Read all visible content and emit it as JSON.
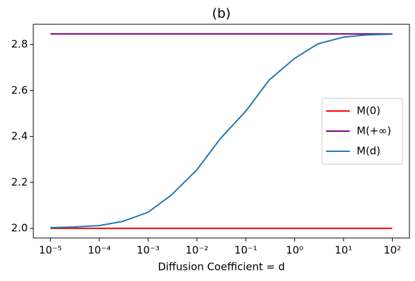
{
  "chart_data": {
    "type": "line",
    "title": "(b)",
    "x_label": "Diffusion Coefficient = d",
    "x": [
      1e-05,
      3e-05,
      0.0001,
      0.0003,
      0.001,
      0.003,
      0.01,
      0.03,
      0.1,
      0.3,
      1,
      3,
      10,
      30,
      100
    ],
    "series": [
      {
        "name": "M(0)",
        "color": "#ff0000",
        "values": [
          2.0,
          2.0,
          2.0,
          2.0,
          2.0,
          2.0,
          2.0,
          2.0,
          2.0,
          2.0,
          2.0,
          2.0,
          2.0,
          2.0,
          2.0
        ]
      },
      {
        "name": "M(+∞)",
        "color": "#800080",
        "values": [
          2.846,
          2.846,
          2.846,
          2.846,
          2.846,
          2.846,
          2.846,
          2.846,
          2.846,
          2.846,
          2.846,
          2.846,
          2.846,
          2.846,
          2.846
        ]
      },
      {
        "name": "M(d)",
        "color": "#1f77b4",
        "values": [
          2.003,
          2.006,
          2.012,
          2.03,
          2.07,
          2.145,
          2.255,
          2.39,
          2.51,
          2.645,
          2.74,
          2.803,
          2.832,
          2.842,
          2.845
        ]
      }
    ],
    "xscale": "log",
    "xlim": [
      4.47e-06,
      223.9
    ],
    "xticks": [
      {
        "value": 1e-05,
        "label": "10⁻⁵"
      },
      {
        "value": 0.0001,
        "label": "10⁻⁴"
      },
      {
        "value": 0.001,
        "label": "10⁻³"
      },
      {
        "value": 0.01,
        "label": "10⁻²"
      },
      {
        "value": 0.1,
        "label": "10⁻¹"
      },
      {
        "value": 1,
        "label": "10⁰"
      },
      {
        "value": 10,
        "label": "10¹"
      },
      {
        "value": 100,
        "label": "10²"
      }
    ],
    "ylim": [
      1.958,
      2.888
    ],
    "yticks": [
      {
        "value": 2.0,
        "label": "2.0"
      },
      {
        "value": 2.2,
        "label": "2.2"
      },
      {
        "value": 2.4,
        "label": "2.4"
      },
      {
        "value": 2.6,
        "label": "2.6"
      },
      {
        "value": 2.8,
        "label": "2.8"
      }
    ],
    "legend": "center right",
    "grid": false
  }
}
